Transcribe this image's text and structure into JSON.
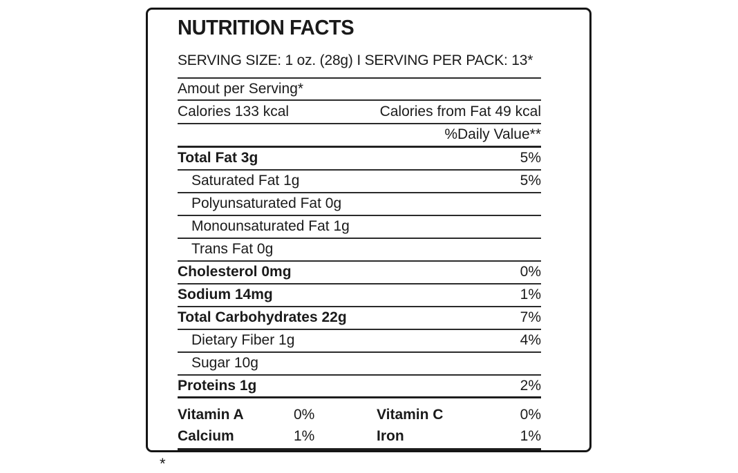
{
  "label": {
    "title": "NUTRITION FACTS",
    "serving_line": "SERVING SIZE: 1 oz. (28g) I SERVING PER PACK: 13*",
    "amount_header": "Amout per Serving*",
    "calories": {
      "left": "Calories 133 kcal",
      "right": "Calories from Fat 49 kcal"
    },
    "daily_value_header": "%Daily Value**",
    "rows": [
      {
        "name": "Total Fat 3g",
        "value": "5%",
        "bold": true,
        "indent": false,
        "thick": false
      },
      {
        "name": "Saturated Fat 1g",
        "value": "5%",
        "bold": false,
        "indent": true,
        "thick": false
      },
      {
        "name": "Polyunsaturated Fat 0g",
        "value": "",
        "bold": false,
        "indent": true,
        "thick": false
      },
      {
        "name": "Monounsaturated Fat 1g",
        "value": "",
        "bold": false,
        "indent": true,
        "thick": false
      },
      {
        "name": "Trans Fat 0g",
        "value": "",
        "bold": false,
        "indent": true,
        "thick": false
      },
      {
        "name": "Cholesterol 0mg",
        "value": "0%",
        "bold": true,
        "indent": false,
        "thick": false
      },
      {
        "name": "Sodium 14mg",
        "value": "1%",
        "bold": true,
        "indent": false,
        "thick": false
      },
      {
        "name": "Total Carbohydrates 22g",
        "value": "7%",
        "bold": true,
        "indent": false,
        "thick": false
      },
      {
        "name": "Dietary Fiber 1g",
        "value": "4%",
        "bold": false,
        "indent": true,
        "thick": false
      },
      {
        "name": "Sugar 10g",
        "value": "",
        "bold": false,
        "indent": true,
        "thick": false
      },
      {
        "name": "Proteins 1g",
        "value": "2%",
        "bold": true,
        "indent": false,
        "thick": true
      }
    ],
    "micros": [
      {
        "name": "Vitamin A",
        "value": "0%"
      },
      {
        "name": "Vitamin C",
        "value": "0%"
      },
      {
        "name": "Calcium",
        "value": "1%"
      },
      {
        "name": "Iron",
        "value": "1%"
      }
    ],
    "footnote_mark": "*"
  },
  "colors": {
    "ink": "#1a1a1a",
    "border": "#141414",
    "background": "#ffffff"
  }
}
